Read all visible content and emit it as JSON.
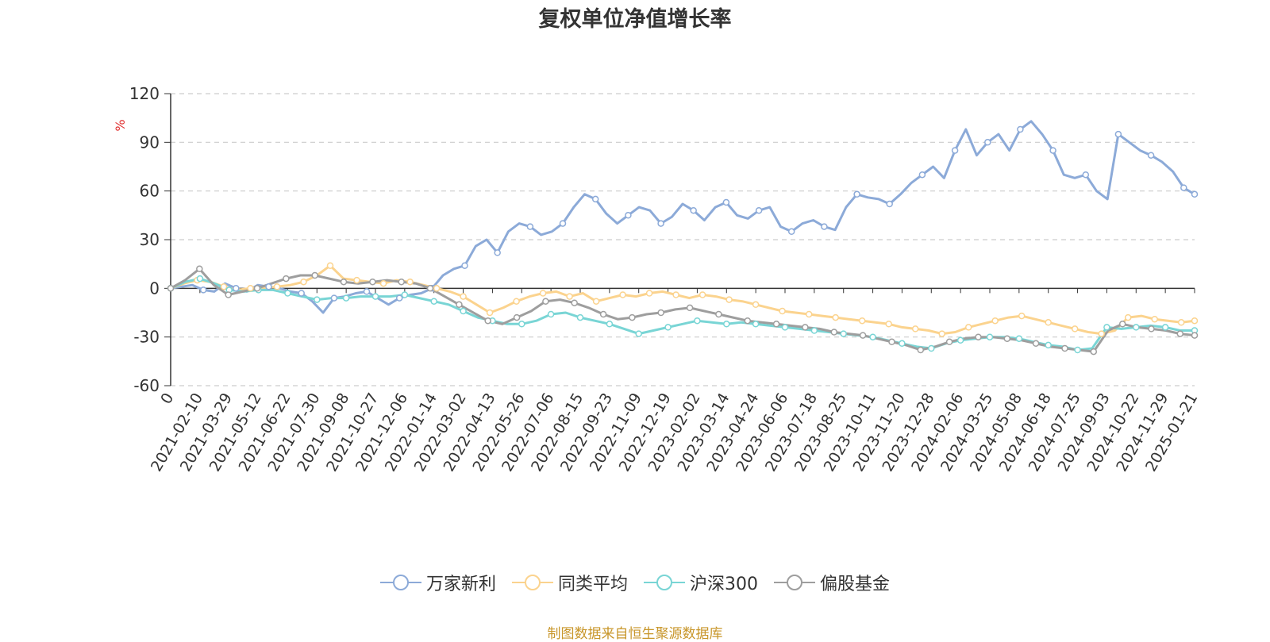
{
  "chart_data": {
    "type": "line",
    "title": "复权单位净值增长率",
    "ylabel": "%",
    "xlabel": "",
    "ylim": [
      -60,
      120
    ],
    "yticks": [
      -60,
      -30,
      0,
      30,
      60,
      90,
      120
    ],
    "x_tick_labels": [
      "0",
      "2021-02-10",
      "2021-03-29",
      "2021-05-12",
      "2021-06-22",
      "2021-07-30",
      "2021-09-08",
      "2021-10-27",
      "2021-12-06",
      "2022-01-14",
      "2022-03-02",
      "2022-04-13",
      "2022-05-26",
      "2022-07-06",
      "2022-08-15",
      "2022-09-23",
      "2022-11-09",
      "2022-12-19",
      "2023-02-02",
      "2023-03-14",
      "2023-04-24",
      "2023-06-06",
      "2023-07-18",
      "2023-08-25",
      "2023-10-11",
      "2023-11-20",
      "2023-12-28",
      "2024-02-06",
      "2024-03-25",
      "2024-05-08",
      "2024-06-18",
      "2024-07-25",
      "2024-09-03",
      "2024-10-22",
      "2024-11-29",
      "2025-01-21"
    ],
    "grid": true,
    "legend_position": "bottom-center",
    "series": [
      {
        "name": "万家新利",
        "color": "#8caad8",
        "values": [
          0,
          1,
          2,
          -1,
          -2,
          3,
          0,
          -2,
          2,
          1,
          0,
          -2,
          -3,
          -8,
          -15,
          -6,
          -5,
          -3,
          -2,
          -6,
          -10,
          -6,
          -4,
          -3,
          0,
          8,
          12,
          14,
          26,
          30,
          22,
          35,
          40,
          38,
          33,
          35,
          40,
          50,
          58,
          55,
          46,
          40,
          45,
          50,
          48,
          40,
          44,
          52,
          48,
          42,
          50,
          53,
          45,
          43,
          48,
          50,
          38,
          35,
          40,
          42,
          38,
          36,
          50,
          58,
          56,
          55,
          52,
          58,
          65,
          70,
          75,
          68,
          85,
          98,
          82,
          90,
          95,
          85,
          98,
          103,
          95,
          85,
          70,
          68,
          70,
          60,
          55,
          95,
          90,
          85,
          82,
          78,
          72,
          62,
          58
        ]
      },
      {
        "name": "同类平均",
        "color": "#fbd38e",
        "values": [
          0,
          3,
          5,
          4,
          1,
          -1,
          0,
          0,
          1,
          2,
          4,
          8,
          14,
          6,
          5,
          4,
          3,
          5,
          4,
          2,
          0,
          -2,
          -5,
          -10,
          -15,
          -12,
          -8,
          -5,
          -3,
          -2,
          -5,
          -3,
          -8,
          -6,
          -4,
          -5,
          -3,
          -2,
          -4,
          -6,
          -4,
          -5,
          -7,
          -8,
          -10,
          -12,
          -14,
          -15,
          -16,
          -17,
          -18,
          -19,
          -20,
          -21,
          -22,
          -24,
          -25,
          -26,
          -28,
          -27,
          -24,
          -22,
          -20,
          -18,
          -17,
          -19,
          -21,
          -23,
          -25,
          -27,
          -28,
          -26,
          -18,
          -17,
          -19,
          -20,
          -21,
          -20
        ]
      },
      {
        "name": "沪深300",
        "color": "#79d5d5",
        "values": [
          0,
          4,
          6,
          3,
          -1,
          -2,
          -1,
          -1,
          -3,
          -5,
          -7,
          -6,
          -6,
          -5,
          -5,
          -5,
          -4,
          -6,
          -8,
          -10,
          -14,
          -18,
          -20,
          -22,
          -22,
          -20,
          -16,
          -15,
          -18,
          -20,
          -22,
          -25,
          -28,
          -26,
          -24,
          -22,
          -20,
          -21,
          -22,
          -21,
          -22,
          -23,
          -24,
          -25,
          -26,
          -27,
          -28,
          -29,
          -30,
          -32,
          -34,
          -36,
          -37,
          -34,
          -32,
          -31,
          -30,
          -30,
          -31,
          -33,
          -35,
          -36,
          -38,
          -37,
          -24,
          -25,
          -24,
          -23,
          -24,
          -26,
          -26
        ]
      },
      {
        "name": "偏股基金",
        "color": "#9e9e9e",
        "values": [
          0,
          5,
          12,
          2,
          -4,
          -2,
          0,
          3,
          6,
          8,
          8,
          6,
          4,
          3,
          4,
          5,
          4,
          3,
          0,
          -5,
          -10,
          -15,
          -20,
          -22,
          -18,
          -14,
          -8,
          -7,
          -9,
          -12,
          -16,
          -19,
          -18,
          -16,
          -15,
          -13,
          -12,
          -14,
          -16,
          -18,
          -20,
          -21,
          -22,
          -23,
          -24,
          -25,
          -27,
          -28,
          -29,
          -31,
          -33,
          -35,
          -38,
          -36,
          -33,
          -31,
          -30,
          -30,
          -31,
          -32,
          -34,
          -36,
          -37,
          -38,
          -39,
          -26,
          -22,
          -24,
          -25,
          -26,
          -28,
          -29
        ]
      }
    ]
  },
  "legend": {
    "items": [
      "万家新利",
      "同类平均",
      "沪深300",
      "偏股基金"
    ]
  },
  "footer": {
    "source": "制图数据来自恒生聚源数据库"
  }
}
